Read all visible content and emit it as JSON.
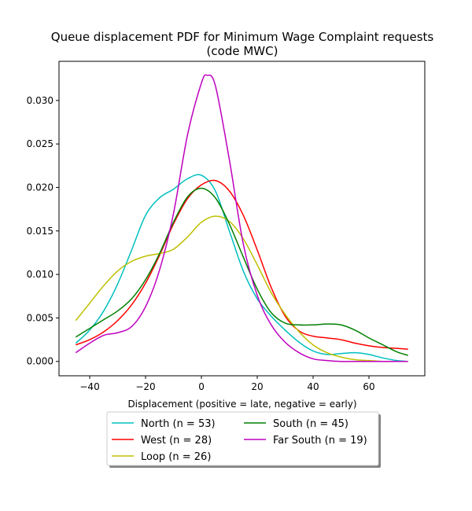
{
  "chart_data": {
    "type": "line",
    "title": "Queue displacement PDF for Minimum Wage Complaint  requests",
    "subtitle": "(code MWC)",
    "xlabel": "Displacement (positive = late, negative = early)",
    "ylabel": "",
    "xlim": [
      -51,
      80
    ],
    "ylim": [
      -0.00165,
      0.0345
    ],
    "xticks": [
      -40,
      -20,
      0,
      20,
      40,
      60
    ],
    "yticks": [
      0.0,
      0.005,
      0.01,
      0.015,
      0.02,
      0.025,
      0.03
    ],
    "ytick_labels": [
      "0.000",
      "0.005",
      "0.010",
      "0.015",
      "0.020",
      "0.025",
      "0.030"
    ],
    "grid": false,
    "legend_position": "below plot",
    "series": [
      {
        "name": "North (n = 53)",
        "color": "#00bfbf",
        "x": [
          -45,
          -40,
          -35,
          -30,
          -25,
          -20,
          -15,
          -10,
          -5,
          0,
          5,
          10,
          15,
          20,
          25,
          30,
          35,
          40,
          45,
          50,
          55,
          60,
          65,
          70,
          74
        ],
        "y": [
          0.0021,
          0.0036,
          0.0058,
          0.0089,
          0.0128,
          0.0168,
          0.0188,
          0.0198,
          0.021,
          0.0214,
          0.0196,
          0.015,
          0.0104,
          0.0072,
          0.0052,
          0.0036,
          0.0022,
          0.0012,
          0.0008,
          0.0009,
          0.001,
          0.0008,
          0.0004,
          0.0001,
          0.0
        ]
      },
      {
        "name": "West (n = 28)",
        "color": "#ff0000",
        "x": [
          -45,
          -40,
          -35,
          -30,
          -25,
          -20,
          -15,
          -10,
          -5,
          0,
          5,
          10,
          15,
          20,
          25,
          30,
          35,
          40,
          45,
          50,
          55,
          60,
          65,
          70,
          74
        ],
        "y": [
          0.0019,
          0.0025,
          0.0034,
          0.0047,
          0.0065,
          0.009,
          0.0122,
          0.0158,
          0.0187,
          0.0203,
          0.0208,
          0.0196,
          0.0168,
          0.0128,
          0.0085,
          0.0052,
          0.0035,
          0.0029,
          0.0027,
          0.0025,
          0.0021,
          0.0018,
          0.0016,
          0.0015,
          0.0014
        ]
      },
      {
        "name": "Loop (n = 26)",
        "color": "#bfbf00",
        "x": [
          -45,
          -40,
          -35,
          -30,
          -25,
          -20,
          -15,
          -10,
          -5,
          0,
          5,
          10,
          15,
          20,
          25,
          30,
          35,
          40,
          45,
          50,
          55,
          60,
          65,
          70,
          74
        ],
        "y": [
          0.0047,
          0.0067,
          0.0087,
          0.0104,
          0.0115,
          0.0121,
          0.0124,
          0.0129,
          0.0143,
          0.016,
          0.0167,
          0.0161,
          0.0141,
          0.0111,
          0.0079,
          0.0054,
          0.0034,
          0.0019,
          0.001,
          0.0005,
          0.0002,
          0.0001,
          0.0,
          0.0,
          0.0
        ]
      },
      {
        "name": "South (n = 45)",
        "color": "#008000",
        "x": [
          -45,
          -40,
          -35,
          -30,
          -25,
          -20,
          -15,
          -10,
          -5,
          0,
          5,
          10,
          15,
          20,
          25,
          30,
          35,
          40,
          45,
          50,
          55,
          60,
          65,
          70,
          74
        ],
        "y": [
          0.0028,
          0.0038,
          0.0048,
          0.0058,
          0.0072,
          0.0094,
          0.0124,
          0.016,
          0.0189,
          0.0199,
          0.0188,
          0.0158,
          0.012,
          0.0083,
          0.0056,
          0.0044,
          0.0042,
          0.0042,
          0.0043,
          0.0042,
          0.0036,
          0.0027,
          0.0019,
          0.0011,
          0.0007
        ]
      },
      {
        "name": "Far South (n = 19)",
        "color": "#bf00bf",
        "x": [
          -45,
          -40,
          -35,
          -30,
          -25,
          -20,
          -15,
          -10,
          -5,
          0,
          2,
          5,
          10,
          15,
          20,
          25,
          30,
          35,
          40,
          45,
          50,
          55,
          60,
          65,
          70,
          74
        ],
        "y": [
          0.001,
          0.0021,
          0.003,
          0.0033,
          0.004,
          0.0063,
          0.0105,
          0.017,
          0.026,
          0.032,
          0.0329,
          0.0317,
          0.0232,
          0.0135,
          0.0076,
          0.0042,
          0.0022,
          0.001,
          0.0003,
          0.0001,
          0.0,
          0.0,
          0.0,
          0.0,
          0.0,
          0.0
        ]
      }
    ]
  }
}
